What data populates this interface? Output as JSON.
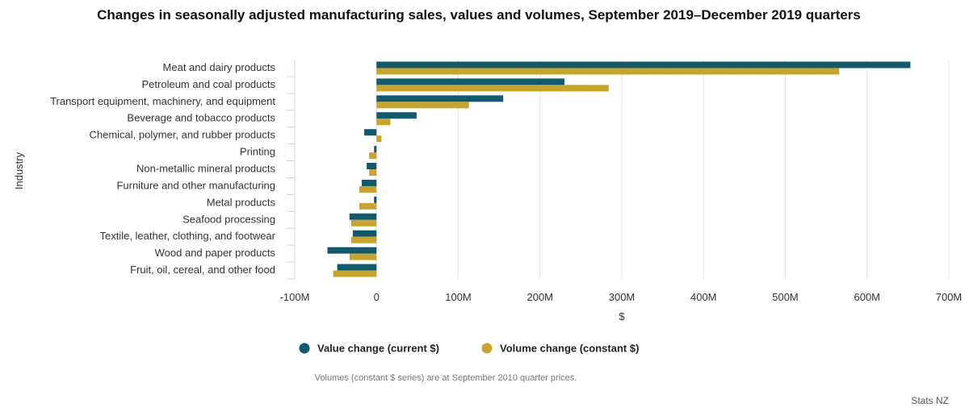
{
  "chart_data": {
    "type": "bar",
    "orientation": "horizontal",
    "title": "Changes in seasonally adjusted manufacturing sales, values and volumes, September 2019–December 2019 quarters",
    "xlabel": "$",
    "ylabel": "Industry",
    "xlim": [
      -100000000,
      700000000
    ],
    "xticks": [
      {
        "value": -100000000,
        "label": "-100M"
      },
      {
        "value": 0,
        "label": "0"
      },
      {
        "value": 100000000,
        "label": "100M"
      },
      {
        "value": 200000000,
        "label": "200M"
      },
      {
        "value": 300000000,
        "label": "300M"
      },
      {
        "value": 400000000,
        "label": "400M"
      },
      {
        "value": 500000000,
        "label": "500M"
      },
      {
        "value": 600000000,
        "label": "600M"
      },
      {
        "value": 700000000,
        "label": "700M"
      }
    ],
    "grid": "vertical",
    "legend_position": "bottom",
    "categories": [
      "Meat and dairy products",
      "Petroleum and coal products",
      "Transport equipment, machinery, and equipment",
      "Beverage and tobacco products",
      "Chemical, polymer, and rubber products",
      "Printing",
      "Non-metallic mineral products",
      "Furniture and other manufacturing",
      "Metal products",
      "Seafood processing",
      "Textile, leather, clothing, and footwear",
      "Wood and paper products",
      "Fruit, oil, cereal, and other food"
    ],
    "series": [
      {
        "name": "Value change (current $)",
        "color": "#0f5a6e",
        "values": [
          653000000,
          230000000,
          155000000,
          49000000,
          -15000000,
          -3000000,
          -12000000,
          -18000000,
          -3000000,
          -33000000,
          -29000000,
          -60000000,
          -48000000
        ]
      },
      {
        "name": "Volume change (constant $)",
        "color": "#c9a42b",
        "values": [
          566000000,
          284000000,
          113000000,
          17000000,
          6000000,
          -9000000,
          -9000000,
          -21000000,
          -21000000,
          -31000000,
          -31000000,
          -33000000,
          -53000000
        ]
      }
    ]
  },
  "note": "Volumes (constant $ series) are at September 2010 quarter prices.",
  "credit": "Stats NZ"
}
